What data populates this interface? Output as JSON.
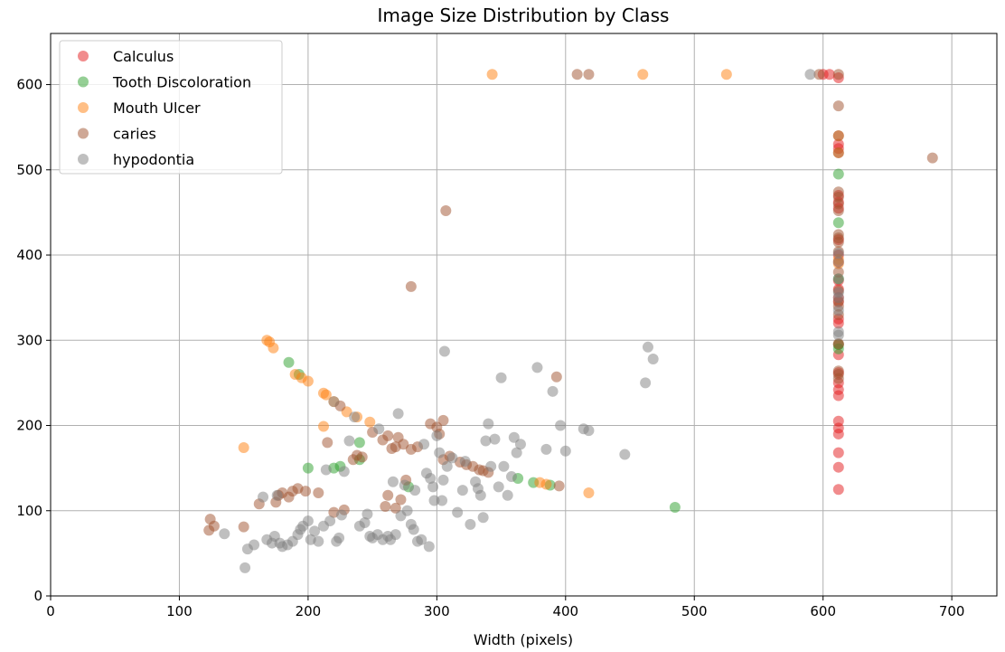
{
  "chart_data": {
    "type": "scatter",
    "title": "Image Size Distribution by Class",
    "xlabel": "Width (pixels)",
    "ylabel": "",
    "xlim": [
      0,
      735
    ],
    "ylim": [
      0,
      660
    ],
    "xticks": [
      0,
      100,
      200,
      300,
      400,
      500,
      600,
      700
    ],
    "yticks": [
      0,
      100,
      200,
      300,
      400,
      500,
      600
    ],
    "grid": true,
    "legend_position": "top-left",
    "point_alpha": 0.5,
    "series": [
      {
        "name": "Calculus",
        "color": "#e31a1c",
        "points": [
          [
            612,
            125
          ],
          [
            612,
            151
          ],
          [
            612,
            168
          ],
          [
            612,
            190
          ],
          [
            612,
            197
          ],
          [
            612,
            205
          ],
          [
            612,
            235
          ],
          [
            612,
            242
          ],
          [
            612,
            250
          ],
          [
            612,
            262
          ],
          [
            612,
            283
          ],
          [
            612,
            295
          ],
          [
            612,
            320
          ],
          [
            612,
            325
          ],
          [
            612,
            345
          ],
          [
            612,
            350
          ],
          [
            612,
            360
          ],
          [
            612,
            370
          ],
          [
            612,
            392
          ],
          [
            612,
            400
          ],
          [
            612,
            418
          ],
          [
            612,
            455
          ],
          [
            612,
            462
          ],
          [
            612,
            470
          ],
          [
            612,
            525
          ],
          [
            612,
            530
          ],
          [
            612,
            608
          ],
          [
            605,
            612
          ],
          [
            600,
            612
          ]
        ]
      },
      {
        "name": "Tooth Discoloration",
        "color": "#2ca02c",
        "points": [
          [
            185,
            274
          ],
          [
            193,
            260
          ],
          [
            200,
            150
          ],
          [
            220,
            150
          ],
          [
            225,
            152
          ],
          [
            240,
            160
          ],
          [
            240,
            180
          ],
          [
            278,
            128
          ],
          [
            363,
            138
          ],
          [
            375,
            133
          ],
          [
            388,
            130
          ],
          [
            485,
            104
          ],
          [
            612,
            495
          ],
          [
            612,
            438
          ],
          [
            612,
            372
          ],
          [
            612,
            295
          ],
          [
            612,
            290
          ]
        ]
      },
      {
        "name": "Mouth Ulcer",
        "color": "#ff7f0e",
        "points": [
          [
            168,
            300
          ],
          [
            170,
            298
          ],
          [
            173,
            291
          ],
          [
            150,
            174
          ],
          [
            190,
            260
          ],
          [
            195,
            256
          ],
          [
            200,
            252
          ],
          [
            212,
            238
          ],
          [
            214,
            236
          ],
          [
            220,
            228
          ],
          [
            230,
            216
          ],
          [
            238,
            210
          ],
          [
            248,
            204
          ],
          [
            212,
            199
          ],
          [
            343,
            612
          ],
          [
            418,
            121
          ],
          [
            460,
            612
          ],
          [
            525,
            612
          ],
          [
            612,
            540
          ],
          [
            612,
            520
          ],
          [
            612,
            390
          ],
          [
            612,
            395
          ],
          [
            380,
            133
          ],
          [
            385,
            131
          ]
        ]
      },
      {
        "name": "caries",
        "color": "#a0522d",
        "points": [
          [
            123,
            77
          ],
          [
            124,
            90
          ],
          [
            127,
            82
          ],
          [
            150,
            81
          ],
          [
            162,
            108
          ],
          [
            175,
            110
          ],
          [
            177,
            118
          ],
          [
            180,
            121
          ],
          [
            185,
            116
          ],
          [
            188,
            123
          ],
          [
            192,
            126
          ],
          [
            198,
            123
          ],
          [
            208,
            121
          ],
          [
            215,
            180
          ],
          [
            220,
            98
          ],
          [
            228,
            101
          ],
          [
            225,
            223
          ],
          [
            235,
            160
          ],
          [
            238,
            165
          ],
          [
            242,
            163
          ],
          [
            250,
            192
          ],
          [
            258,
            183
          ],
          [
            262,
            188
          ],
          [
            265,
            173
          ],
          [
            268,
            175
          ],
          [
            270,
            186
          ],
          [
            272,
            113
          ],
          [
            274,
            178
          ],
          [
            280,
            363
          ],
          [
            280,
            172
          ],
          [
            285,
            175
          ],
          [
            295,
            202
          ],
          [
            300,
            198
          ],
          [
            302,
            190
          ],
          [
            305,
            206
          ],
          [
            305,
            160
          ],
          [
            307,
            452
          ],
          [
            310,
            164
          ],
          [
            318,
            157
          ],
          [
            323,
            154
          ],
          [
            328,
            152
          ],
          [
            333,
            148
          ],
          [
            336,
            147
          ],
          [
            340,
            145
          ],
          [
            393,
            257
          ],
          [
            395,
            129
          ],
          [
            409,
            612
          ],
          [
            418,
            612
          ],
          [
            597,
            612
          ],
          [
            612,
            612
          ],
          [
            612,
            575
          ],
          [
            612,
            540
          ],
          [
            612,
            520
          ],
          [
            612,
            474
          ],
          [
            612,
            468
          ],
          [
            612,
            460
          ],
          [
            612,
            452
          ],
          [
            612,
            424
          ],
          [
            612,
            420
          ],
          [
            612,
            415
          ],
          [
            612,
            404
          ],
          [
            612,
            380
          ],
          [
            612,
            358
          ],
          [
            612,
            346
          ],
          [
            612,
            340
          ],
          [
            612,
            330
          ],
          [
            612,
            296
          ],
          [
            612,
            264
          ],
          [
            612,
            260
          ],
          [
            612,
            255
          ],
          [
            685,
            514
          ],
          [
            260,
            105
          ],
          [
            268,
            103
          ],
          [
            276,
            136
          ],
          [
            262,
            118
          ]
        ]
      },
      {
        "name": "hypodontia",
        "color": "#808080",
        "points": [
          [
            151,
            33
          ],
          [
            153,
            55
          ],
          [
            158,
            60
          ],
          [
            135,
            73
          ],
          [
            165,
            116
          ],
          [
            168,
            66
          ],
          [
            172,
            62
          ],
          [
            174,
            70
          ],
          [
            176,
            118
          ],
          [
            178,
            62
          ],
          [
            180,
            58
          ],
          [
            184,
            60
          ],
          [
            188,
            64
          ],
          [
            192,
            72
          ],
          [
            194,
            78
          ],
          [
            196,
            82
          ],
          [
            200,
            88
          ],
          [
            202,
            66
          ],
          [
            205,
            76
          ],
          [
            208,
            64
          ],
          [
            212,
            82
          ],
          [
            214,
            148
          ],
          [
            217,
            88
          ],
          [
            220,
            228
          ],
          [
            222,
            64
          ],
          [
            224,
            68
          ],
          [
            226,
            95
          ],
          [
            228,
            146
          ],
          [
            232,
            182
          ],
          [
            236,
            210
          ],
          [
            240,
            82
          ],
          [
            244,
            86
          ],
          [
            246,
            96
          ],
          [
            248,
            70
          ],
          [
            250,
            68
          ],
          [
            254,
            72
          ],
          [
            255,
            196
          ],
          [
            258,
            66
          ],
          [
            262,
            70
          ],
          [
            264,
            66
          ],
          [
            266,
            134
          ],
          [
            268,
            72
          ],
          [
            270,
            214
          ],
          [
            272,
            94
          ],
          [
            275,
            130
          ],
          [
            277,
            100
          ],
          [
            280,
            84
          ],
          [
            282,
            78
          ],
          [
            283,
            124
          ],
          [
            285,
            64
          ],
          [
            288,
            66
          ],
          [
            290,
            178
          ],
          [
            292,
            144
          ],
          [
            294,
            58
          ],
          [
            295,
            138
          ],
          [
            297,
            128
          ],
          [
            298,
            112
          ],
          [
            300,
            188
          ],
          [
            302,
            168
          ],
          [
            304,
            112
          ],
          [
            305,
            136
          ],
          [
            306,
            287
          ],
          [
            308,
            152
          ],
          [
            312,
            162
          ],
          [
            316,
            98
          ],
          [
            320,
            124
          ],
          [
            322,
            158
          ],
          [
            326,
            84
          ],
          [
            330,
            134
          ],
          [
            332,
            126
          ],
          [
            334,
            118
          ],
          [
            336,
            92
          ],
          [
            338,
            182
          ],
          [
            340,
            202
          ],
          [
            342,
            152
          ],
          [
            345,
            184
          ],
          [
            348,
            128
          ],
          [
            350,
            256
          ],
          [
            352,
            152
          ],
          [
            355,
            118
          ],
          [
            358,
            140
          ],
          [
            360,
            186
          ],
          [
            362,
            168
          ],
          [
            365,
            178
          ],
          [
            378,
            268
          ],
          [
            385,
            172
          ],
          [
            390,
            240
          ],
          [
            396,
            200
          ],
          [
            400,
            170
          ],
          [
            414,
            196
          ],
          [
            418,
            194
          ],
          [
            446,
            166
          ],
          [
            462,
            250
          ],
          [
            464,
            292
          ],
          [
            468,
            278
          ],
          [
            612,
            402
          ],
          [
            612,
            392
          ],
          [
            612,
            372
          ],
          [
            612,
            356
          ],
          [
            612,
            350
          ],
          [
            612,
            335
          ],
          [
            612,
            310
          ],
          [
            612,
            306
          ],
          [
            590,
            612
          ]
        ]
      }
    ]
  }
}
